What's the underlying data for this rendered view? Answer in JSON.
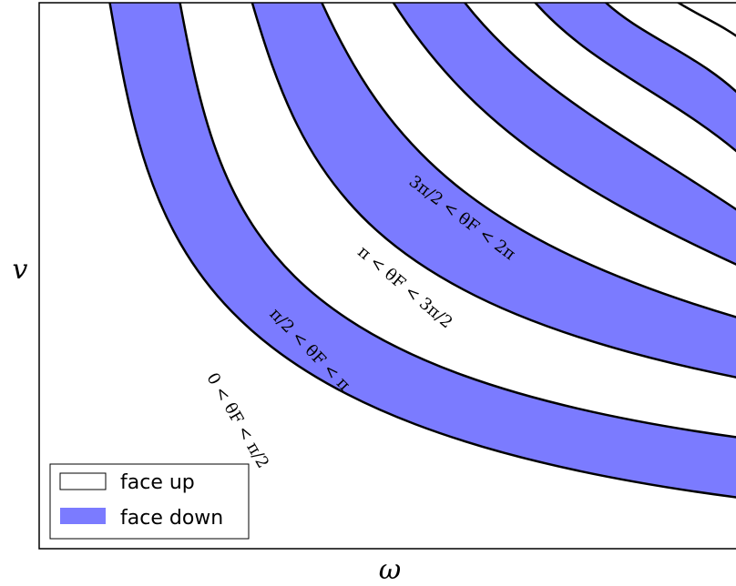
{
  "chart_data": {
    "type": "area",
    "title": "",
    "xlabel": "ω",
    "ylabel": "v",
    "grid": false,
    "legend": {
      "placement": "bottom-left",
      "entries": [
        {
          "label": "face up",
          "fill": "#ffffff"
        },
        {
          "label": "face down",
          "fill": "#7b7bff"
        }
      ]
    },
    "colors": {
      "face_up": "#ffffff",
      "face_down": "#7b7bff",
      "boundary": "#000000"
    },
    "bands": [
      {
        "name": "face up",
        "range": "0 < θF < π/2"
      },
      {
        "name": "face down",
        "range": "π/2 < θF < π"
      },
      {
        "name": "face up",
        "range": "π < θF < 3π/2"
      },
      {
        "name": "face down",
        "range": "3π/2 < θF < 2π"
      }
    ],
    "annotations": [
      "0 < θF < π/2",
      "π/2 < θF < π",
      "π < θF < 3π/2",
      "3π/2 < θF < 2π"
    ]
  }
}
